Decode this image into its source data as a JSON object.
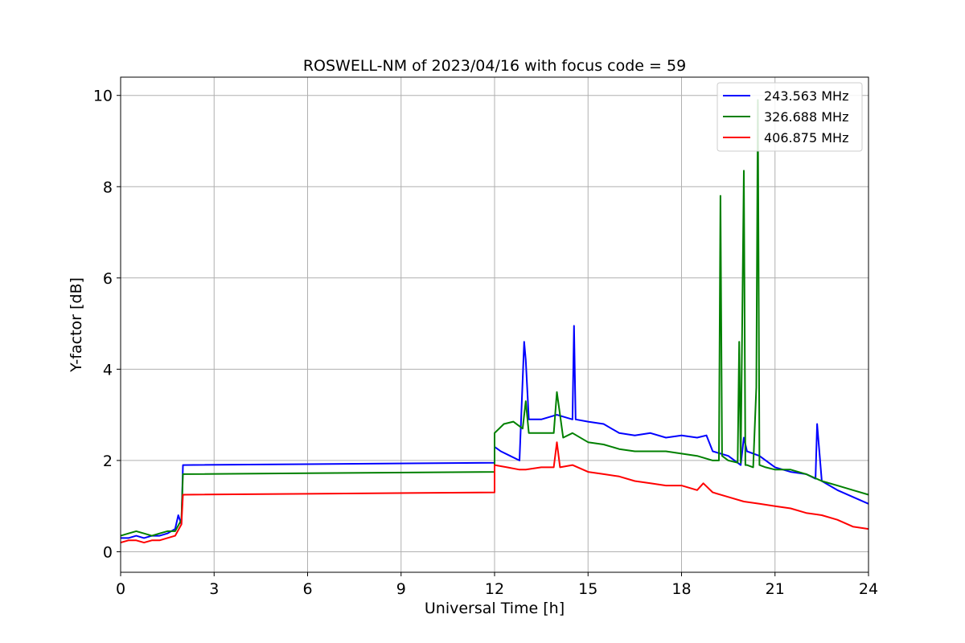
{
  "chart_data": {
    "type": "line",
    "title": "ROSWELL-NM of 2023/04/16 with focus code = 59",
    "xlabel": "Universal Time [h]",
    "ylabel": "Y-factor [dB]",
    "xlim": [
      0,
      24
    ],
    "ylim": [
      -0.45,
      10.4
    ],
    "xticks": [
      0,
      3,
      6,
      9,
      12,
      15,
      18,
      21,
      24
    ],
    "yticks": [
      0,
      2,
      4,
      6,
      8,
      10
    ],
    "grid": true,
    "legend_position": "top-right",
    "series": [
      {
        "name": "243.563 MHz",
        "color": "#0000ff",
        "x": [
          0,
          0.25,
          0.5,
          0.75,
          1.0,
          1.25,
          1.5,
          1.75,
          1.85,
          1.95,
          2.0,
          12.0,
          12.0,
          12.2,
          12.5,
          12.8,
          12.95,
          13.0,
          13.1,
          13.5,
          14.0,
          14.5,
          14.55,
          14.6,
          15.0,
          15.5,
          16.0,
          16.5,
          17.0,
          17.5,
          18.0,
          18.5,
          18.8,
          19.0,
          19.5,
          19.9,
          20.0,
          20.1,
          20.5,
          21.0,
          21.5,
          22.0,
          22.3,
          22.35,
          22.5,
          23.0,
          23.5,
          24.0
        ],
        "y": [
          0.3,
          0.3,
          0.35,
          0.3,
          0.35,
          0.35,
          0.4,
          0.5,
          0.8,
          0.6,
          1.9,
          1.95,
          2.3,
          2.2,
          2.1,
          2.0,
          4.6,
          4.2,
          2.9,
          2.9,
          3.0,
          2.9,
          4.95,
          2.9,
          2.85,
          2.8,
          2.6,
          2.55,
          2.6,
          2.5,
          2.55,
          2.5,
          2.55,
          2.2,
          2.1,
          1.9,
          2.5,
          2.2,
          2.1,
          1.85,
          1.75,
          1.7,
          1.6,
          2.8,
          1.55,
          1.35,
          1.2,
          1.05
        ]
      },
      {
        "name": "326.688 MHz",
        "color": "#008000",
        "x": [
          0,
          0.25,
          0.5,
          0.75,
          1.0,
          1.25,
          1.5,
          1.75,
          1.95,
          2.0,
          12.0,
          12.0,
          12.3,
          12.6,
          12.9,
          13.0,
          13.1,
          13.5,
          13.9,
          14.0,
          14.2,
          14.5,
          15.0,
          15.5,
          16.0,
          16.5,
          17.0,
          17.5,
          18.0,
          18.5,
          19.0,
          19.2,
          19.25,
          19.3,
          19.5,
          19.8,
          19.85,
          19.9,
          20.0,
          20.05,
          20.1,
          20.3,
          20.4,
          20.45,
          20.5,
          20.7,
          21.0,
          21.5,
          22.0,
          22.5,
          23.0,
          23.5,
          24.0
        ],
        "y": [
          0.35,
          0.4,
          0.45,
          0.4,
          0.35,
          0.4,
          0.45,
          0.45,
          0.7,
          1.7,
          1.75,
          2.6,
          2.8,
          2.85,
          2.7,
          3.3,
          2.6,
          2.6,
          2.6,
          3.5,
          2.5,
          2.6,
          2.4,
          2.35,
          2.25,
          2.2,
          2.2,
          2.2,
          2.15,
          2.1,
          2.0,
          2.0,
          7.8,
          2.1,
          2.0,
          1.95,
          4.6,
          1.95,
          8.35,
          1.9,
          1.9,
          1.85,
          3.6,
          9.9,
          1.9,
          1.85,
          1.8,
          1.8,
          1.7,
          1.55,
          1.45,
          1.35,
          1.25
        ]
      },
      {
        "name": "406.875 MHz",
        "color": "#ff0000",
        "x": [
          0,
          0.25,
          0.5,
          0.75,
          1.0,
          1.25,
          1.5,
          1.75,
          1.95,
          2.0,
          12.0,
          12.0,
          12.4,
          12.8,
          13.0,
          13.5,
          13.9,
          14.0,
          14.1,
          14.5,
          15.0,
          15.5,
          16.0,
          16.5,
          17.0,
          17.5,
          18.0,
          18.5,
          18.7,
          19.0,
          19.5,
          20.0,
          20.5,
          21.0,
          21.5,
          22.0,
          22.5,
          23.0,
          23.5,
          24.0
        ],
        "y": [
          0.2,
          0.25,
          0.25,
          0.2,
          0.25,
          0.25,
          0.3,
          0.35,
          0.6,
          1.25,
          1.3,
          1.9,
          1.85,
          1.8,
          1.8,
          1.85,
          1.85,
          2.4,
          1.85,
          1.9,
          1.75,
          1.7,
          1.65,
          1.55,
          1.5,
          1.45,
          1.45,
          1.35,
          1.5,
          1.3,
          1.2,
          1.1,
          1.05,
          1.0,
          0.95,
          0.85,
          0.8,
          0.7,
          0.55,
          0.5
        ]
      }
    ]
  }
}
